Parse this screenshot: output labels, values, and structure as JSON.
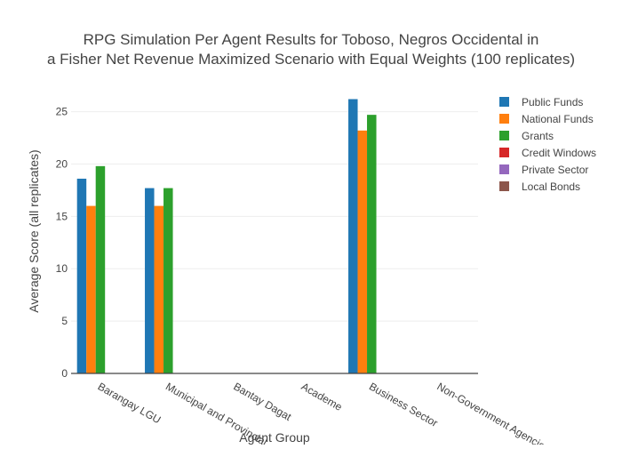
{
  "chart_data": {
    "type": "bar",
    "title_lines": [
      "RPG Simulation Per Agent Results for Toboso, Negros Occidental in",
      "a Fisher Net Revenue Maximized Scenario with Equal Weights (100 replicates)"
    ],
    "xlabel": "Agent Group",
    "ylabel": "Average Score (all replicates)",
    "categories": [
      "Barangay LGU",
      "Municipal and Provincial",
      "Bantay Dagat",
      "Academe",
      "Business Sector",
      "Non-Government Agencies"
    ],
    "y_ticks": [
      "0",
      "5",
      "10",
      "15",
      "20",
      "25"
    ],
    "ylim": [
      0,
      27.6
    ],
    "grid": true,
    "legend_position": "top-right",
    "series": [
      {
        "name": "Public Funds",
        "color": "#1f77b4",
        "values": [
          18.6,
          17.7,
          0,
          0,
          26.2,
          0
        ]
      },
      {
        "name": "National Funds",
        "color": "#ff7f0e",
        "values": [
          16.0,
          16.0,
          0,
          0,
          23.2,
          0
        ]
      },
      {
        "name": "Grants",
        "color": "#2ca02c",
        "values": [
          19.8,
          17.7,
          0,
          0,
          24.7,
          0
        ]
      },
      {
        "name": "Credit Windows",
        "color": "#d62728",
        "values": [
          0,
          0,
          0,
          0,
          0,
          0
        ]
      },
      {
        "name": "Private Sector",
        "color": "#9467bd",
        "values": [
          0,
          0,
          0,
          0,
          0,
          0
        ]
      },
      {
        "name": "Local Bonds",
        "color": "#8c564b",
        "values": [
          0,
          0,
          0,
          0,
          0,
          0
        ]
      }
    ]
  }
}
